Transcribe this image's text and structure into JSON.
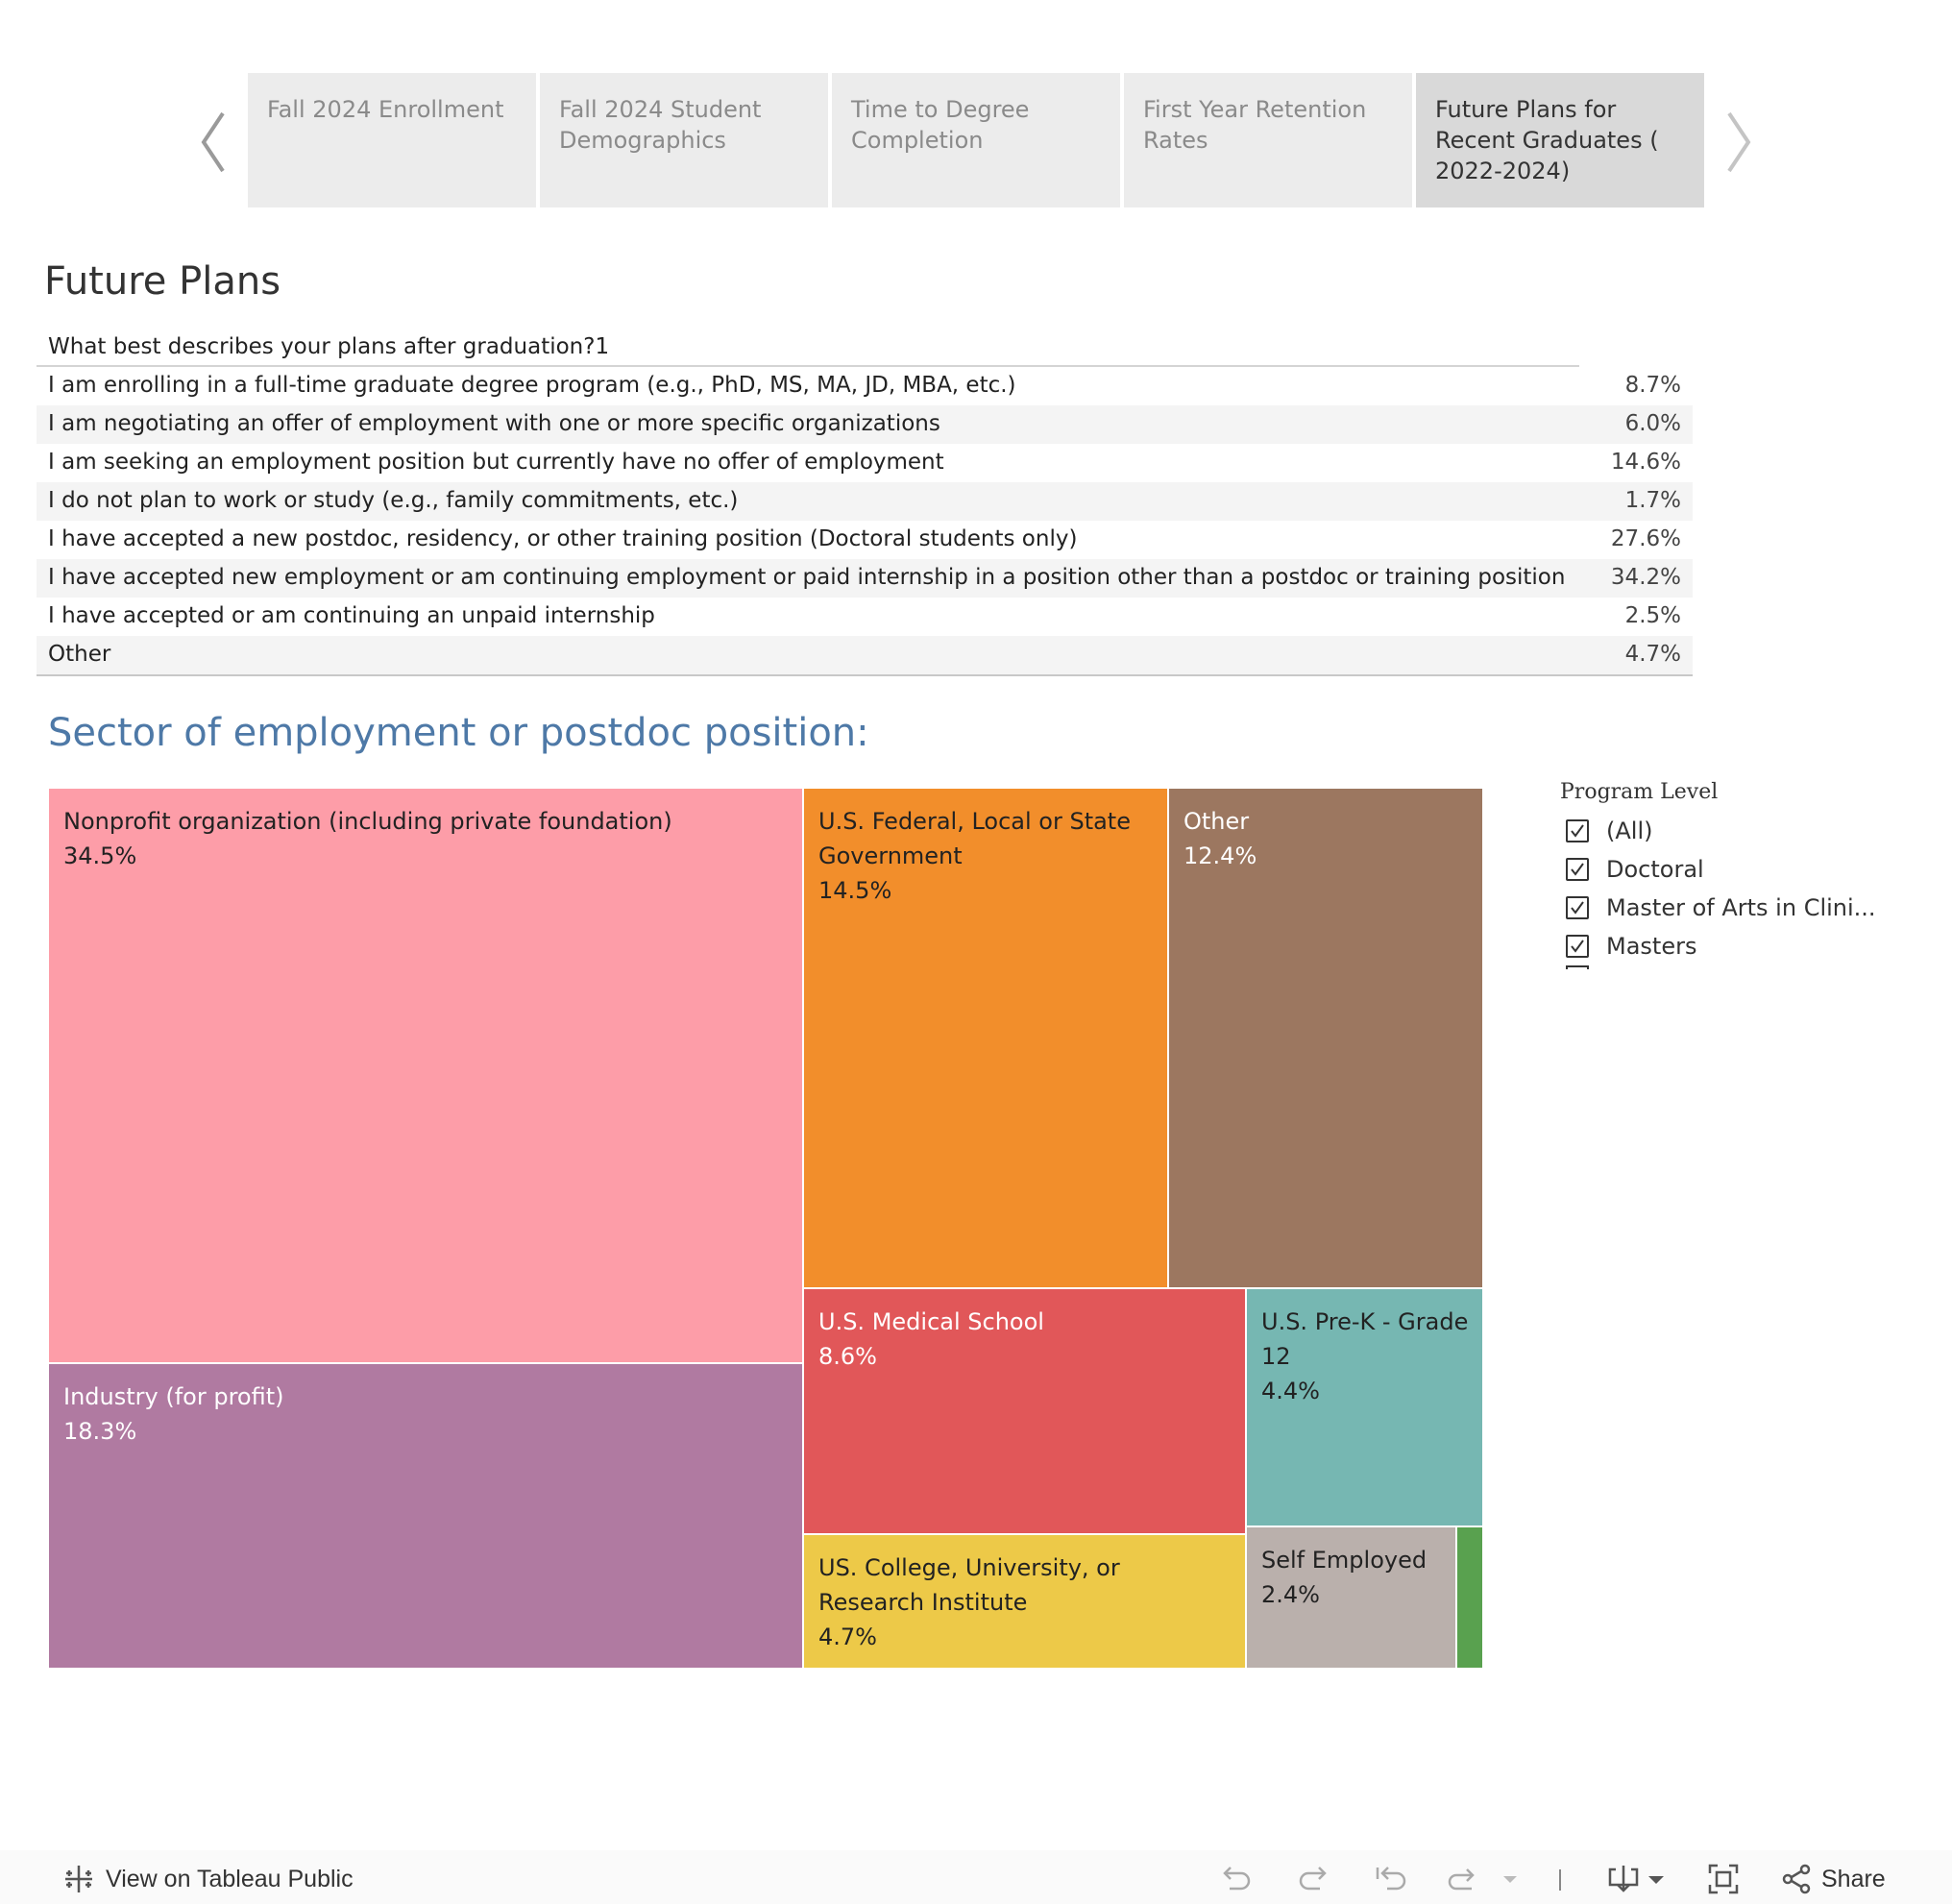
{
  "tabs": [
    {
      "label": "Fall 2024 Enrollment",
      "active": false
    },
    {
      "label": "Fall 2024 Student Demographics",
      "active": false
    },
    {
      "label": "Time to Degree Completion",
      "active": false
    },
    {
      "label": "First Year Retention Rates",
      "active": false
    },
    {
      "label": "Future Plans for Recent Graduates ( 2022-2024)",
      "active": true
    }
  ],
  "nav": {
    "prev_icon": "chevron-left-icon",
    "next_icon": "chevron-right-icon"
  },
  "page_title": "Future Plans",
  "plans_table": {
    "header": "What best describes your plans after graduation?1",
    "rows": [
      {
        "label": "I am enrolling in a full-time graduate degree program (e.g., PhD, MS, MA, JD, MBA, etc.)",
        "value": "8.7%"
      },
      {
        "label": "I am negotiating an offer of employment with one or more specific organizations",
        "value": "6.0%"
      },
      {
        "label": "I am seeking an employment position but currently have no offer of employment",
        "value": "14.6%"
      },
      {
        "label": "I do not plan to work or study (e.g., family commitments, etc.)",
        "value": "1.7%"
      },
      {
        "label": "I have accepted a new postdoc, residency, or other training position (Doctoral students only)",
        "value": "27.6%"
      },
      {
        "label": "I have accepted new employment or am continuing employment or paid internship in a position other than a postdoc or training position",
        "value": "34.2%"
      },
      {
        "label": "I have accepted or am continuing an unpaid internship",
        "value": "2.5%"
      },
      {
        "label": "Other",
        "value": "4.7%"
      }
    ]
  },
  "sector_title": "Sector of employment or postdoc position:",
  "chart_data": {
    "type": "treemap",
    "title": "Sector of employment or postdoc position:",
    "items": [
      {
        "name": "Nonprofit organization (including private foundation)",
        "value": 34.5,
        "label": "34.5%",
        "color": "#fd9da8",
        "text_color": "#222222"
      },
      {
        "name": "Industry (for profit)",
        "value": 18.3,
        "label": "18.3%",
        "color": "#b07aa1",
        "text_color": "#ffffff"
      },
      {
        "name": "U.S. Federal, Local or State Government",
        "value": 14.5,
        "label": "14.5%",
        "color": "#f28e2b",
        "text_color": "#222222"
      },
      {
        "name": "Other",
        "value": 12.4,
        "label": "12.4%",
        "color": "#9c7760",
        "text_color": "#ffffff"
      },
      {
        "name": "U.S. Medical School",
        "value": 8.6,
        "label": "8.6%",
        "color": "#e15759",
        "text_color": "#ffffff"
      },
      {
        "name": "US. College, University, or Research Institute",
        "value": 4.7,
        "label": "4.7%",
        "color": "#edc948",
        "text_color": "#222222"
      },
      {
        "name": "U.S. Pre-K - Grade 12",
        "value": 4.4,
        "label": "4.4%",
        "color": "#76b7b2",
        "text_color": "#222222"
      },
      {
        "name": "Self Employed",
        "value": 2.4,
        "label": "2.4%",
        "color": "#bab0ac",
        "text_color": "#222222"
      },
      {
        "name": "",
        "value": 0.6,
        "label": "",
        "color": "#59a14f",
        "text_color": "#222222"
      }
    ]
  },
  "filter": {
    "title": "Program Level",
    "items": [
      {
        "label": "(All)",
        "checked": true
      },
      {
        "label": "Doctoral",
        "checked": true
      },
      {
        "label": "Master of Arts in Clini...",
        "checked": true
      },
      {
        "label": "Masters",
        "checked": true
      }
    ]
  },
  "toolbar": {
    "view_label": "View on Tableau Public",
    "share_label": "Share"
  }
}
